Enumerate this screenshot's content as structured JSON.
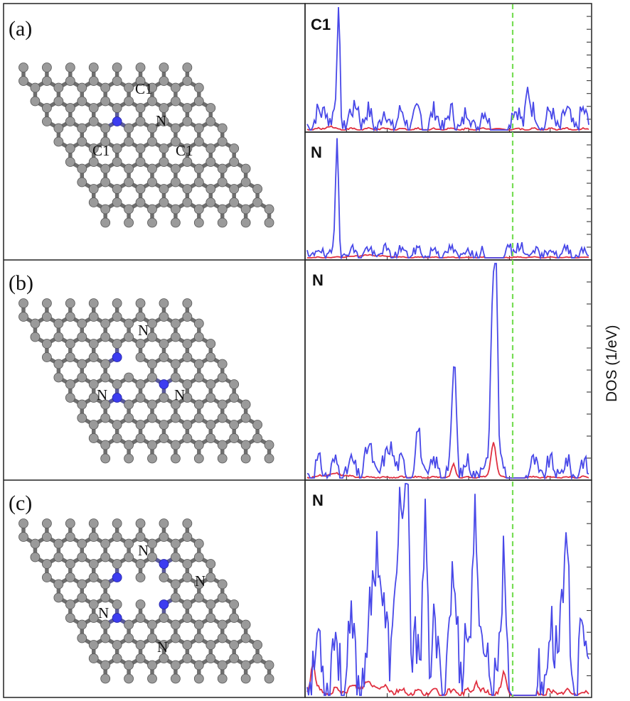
{
  "panels": [
    {
      "tag": "(a)",
      "atom_labels": [
        "C1",
        "N",
        "C1",
        "C1"
      ],
      "plot_labels": [
        "C1",
        "N"
      ]
    },
    {
      "tag": "(b)",
      "atom_labels": [
        "N",
        "N",
        "N"
      ],
      "plot_labels": [
        "N"
      ]
    },
    {
      "tag": "(c)",
      "atom_labels": [
        "N",
        "N",
        "N",
        "N"
      ],
      "plot_labels": [
        "N"
      ]
    }
  ],
  "y_axis_label": "DOS (1/eV)",
  "colors": {
    "carbon_atom": "#9a9a9a",
    "nitrogen_atom": "#3c3cf0",
    "total_dos": "#4848e8",
    "partial_dos": "#e03040",
    "fermi_line": "#77dd55"
  }
}
